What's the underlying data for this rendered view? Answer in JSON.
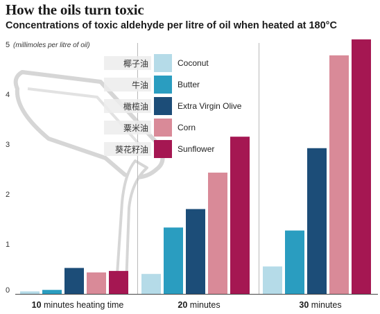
{
  "header": {
    "title": "How the oils turn toxic",
    "subtitle": "Concentrations of toxic aldehyde per litre of oil when heated at 180°C"
  },
  "chart_data": {
    "type": "bar",
    "title": "How the oils turn toxic",
    "subtitle": "Concentrations of toxic aldehyde per litre of oil when heated at 180°C",
    "ylabel": "(millimoles per litre of oil)",
    "ylim": [
      0,
      5
    ],
    "yticks": [
      "0",
      "1",
      "2",
      "3",
      "4",
      "5"
    ],
    "grid": "vertical separators between groups",
    "legend_position": "upper-left",
    "category_prefix": [
      "10",
      "20",
      "30"
    ],
    "category_suffix": [
      " minutes heating time",
      " minutes",
      " minutes"
    ],
    "categories": [
      "10 minutes heating time",
      "20 minutes",
      "30 minutes"
    ],
    "series": [
      {
        "name": "Coconut",
        "name_cn": "椰子油",
        "color": "#b5dbe8",
        "values": [
          0.05,
          0.4,
          0.55
        ]
      },
      {
        "name": "Butter",
        "name_cn": "牛油",
        "color": "#2a9dc0",
        "values": [
          0.08,
          1.33,
          1.27
        ]
      },
      {
        "name": "Extra Virgin Olive",
        "name_cn": "橄榄油",
        "color": "#1c4d78",
        "values": [
          0.52,
          1.7,
          2.92
        ]
      },
      {
        "name": "Corn",
        "name_cn": "粟米油",
        "color": "#d98a98",
        "values": [
          0.43,
          2.43,
          4.78
        ]
      },
      {
        "name": "Sunflower",
        "name_cn": "葵花籽油",
        "color": "#a51752",
        "values": [
          0.46,
          3.15,
          5.1
        ]
      }
    ]
  }
}
